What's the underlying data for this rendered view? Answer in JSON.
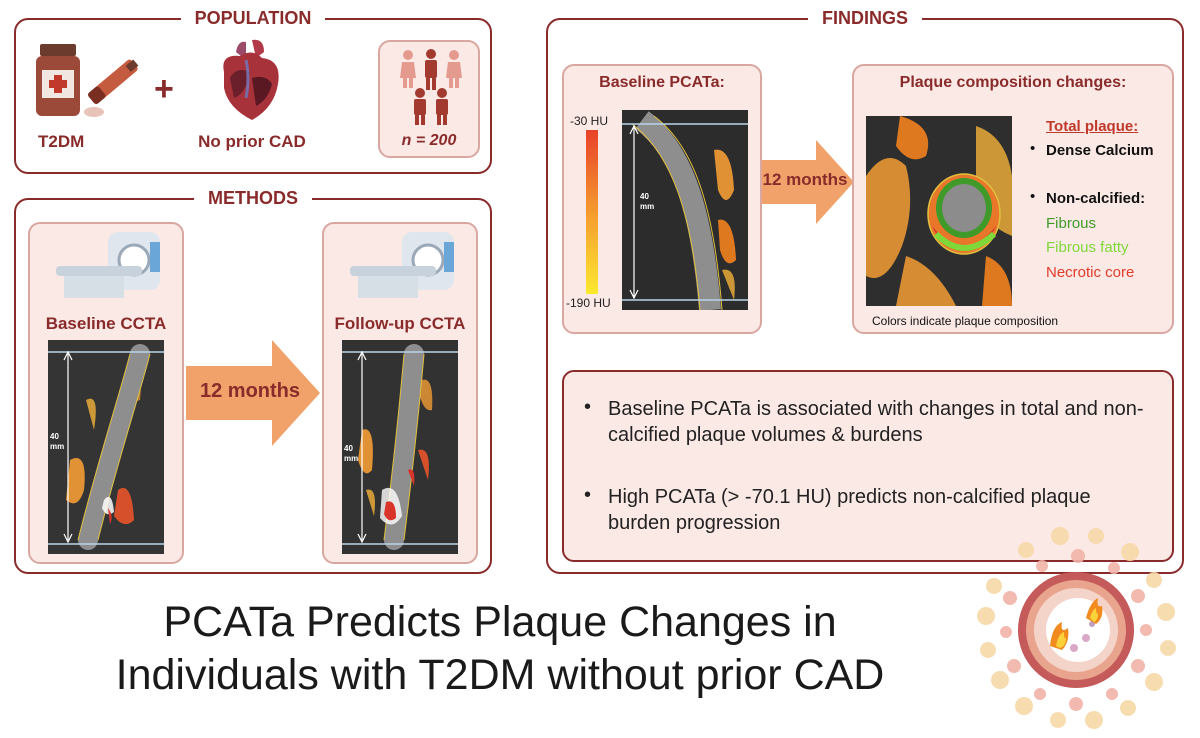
{
  "population": {
    "title": "POPULATION",
    "t2dm_label": "T2DM",
    "plus": "+",
    "no_cad_label": "No prior CAD",
    "n_label": "n = 200"
  },
  "methods": {
    "title": "METHODS",
    "baseline_label": "Baseline CCTA",
    "followup_label": "Follow-up CCTA",
    "arrow_label": "12 months",
    "scale_label_1": "40",
    "scale_label_2": "mm"
  },
  "findings": {
    "title": "FINDINGS",
    "baseline_pcata_title": "Baseline PCATa:",
    "scale_top": "-30 HU",
    "scale_bottom": "-190 HU",
    "arrow_label": "12 months",
    "composition_title": "Plaque composition changes:",
    "legend": {
      "total_plaque": "Total plaque:",
      "dense_calcium": "Dense Calcium",
      "non_calcified": "Non-calcified:",
      "fibrous": "Fibrous",
      "fibrous_fatty": "Fibrous fatty",
      "necrotic_core": "Necrotic core"
    },
    "colors_note": "Colors indicate plaque composition",
    "bullets": [
      "Baseline PCATa is associated with changes in total and non-calcified plaque volumes & burdens",
      "High PCATa (> -70.1 HU) predicts non-calcified plaque burden progression"
    ]
  },
  "main_title_line1": "PCATa Predicts Plaque Changes in",
  "main_title_line2": "Individuals with T2DM without prior CAD",
  "colors": {
    "accent": "#8a2b2b",
    "panel_fill": "#fbe9e6",
    "arrow": "#f0a26a",
    "fibrous": "#3f9a2a",
    "fibrous_fatty": "#7fd83a",
    "necrotic_core": "#e23b2a"
  }
}
